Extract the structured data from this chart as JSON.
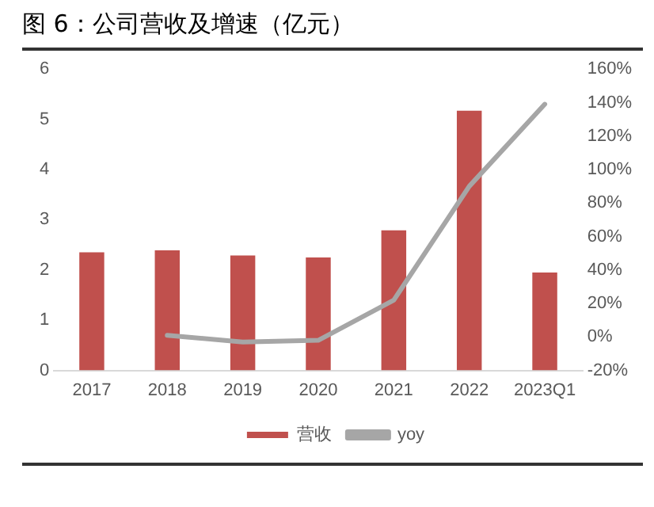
{
  "chart_data": {
    "type": "bar",
    "title": "图 6：公司营收及增速（亿元）",
    "categories": [
      "2017",
      "2018",
      "2019",
      "2020",
      "2021",
      "2022",
      "2023Q1"
    ],
    "series": [
      {
        "name": "营收",
        "color": "#c0504d",
        "values": [
          2.35,
          2.39,
          2.29,
          2.25,
          2.79,
          5.17,
          1.95
        ]
      },
      {
        "name": "yoy",
        "type": "line",
        "axis": "y2",
        "color": "#a6a6a6",
        "values": [
          null,
          1,
          -3,
          -2,
          22,
          90,
          139
        ]
      }
    ],
    "ylim": [
      0,
      6
    ],
    "yticks": [
      0,
      1,
      2,
      3,
      4,
      5,
      6
    ],
    "y2lim": [
      -20,
      160
    ],
    "y2ticks": [
      {
        "value": -20,
        "label": "-20%"
      },
      {
        "value": 0,
        "label": "0%"
      },
      {
        "value": 20,
        "label": "20%"
      },
      {
        "value": 40,
        "label": "40%"
      },
      {
        "value": 60,
        "label": "60%"
      },
      {
        "value": 80,
        "label": "80%"
      },
      {
        "value": 100,
        "label": "100%"
      },
      {
        "value": 120,
        "label": "120%"
      },
      {
        "value": 140,
        "label": "140%"
      },
      {
        "value": 160,
        "label": "160%"
      }
    ],
    "grid": false,
    "legend": "bottom",
    "marker": "none"
  }
}
